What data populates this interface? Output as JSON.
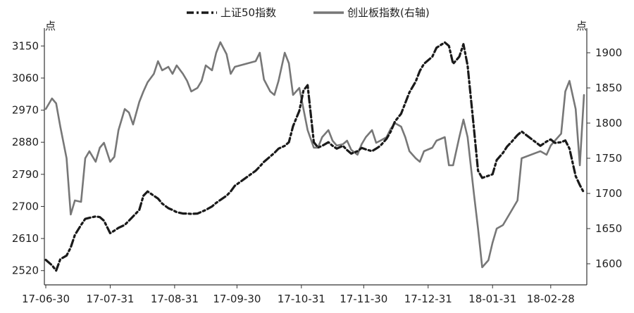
{
  "chart_data": {
    "type": "line",
    "title": "",
    "legend": {
      "position": "top-center",
      "entries": [
        {
          "name": "上证50指数",
          "color": "#1a1a1a",
          "style": "dash-dot"
        },
        {
          "name": "创业板指数(右轴)",
          "color": "#777777",
          "style": "solid"
        }
      ]
    },
    "left_axis": {
      "unit_label": "点",
      "ylim": [
        2480,
        3200
      ],
      "ticks": [
        2520,
        2610,
        2700,
        2790,
        2880,
        2970,
        3060,
        3150
      ]
    },
    "right_axis": {
      "unit_label": "点",
      "ylim": [
        1570,
        1935
      ],
      "ticks": [
        1600,
        1650,
        1700,
        1750,
        1800,
        1850,
        1900
      ]
    },
    "x_axis": {
      "ticks": [
        "17-06-30",
        "17-07-31",
        "17-08-31",
        "17-09-30",
        "17-10-31",
        "17-11-30",
        "17-12-31",
        "18-01-31",
        "18-02-28"
      ],
      "grid": false
    },
    "series": [
      {
        "name": "上证50指数",
        "axis": "left",
        "color": "#1a1a1a",
        "x": [
          "2017-06-30",
          "2017-07-03",
          "2017-07-05",
          "2017-07-07",
          "2017-07-10",
          "2017-07-12",
          "2017-07-14",
          "2017-07-17",
          "2017-07-19",
          "2017-07-21",
          "2017-07-24",
          "2017-07-26",
          "2017-07-28",
          "2017-07-31",
          "2017-08-02",
          "2017-08-04",
          "2017-08-07",
          "2017-08-09",
          "2017-08-11",
          "2017-08-14",
          "2017-08-16",
          "2017-08-18",
          "2017-08-21",
          "2017-08-23",
          "2017-08-25",
          "2017-08-28",
          "2017-08-30",
          "2017-09-01",
          "2017-09-04",
          "2017-09-06",
          "2017-09-08",
          "2017-09-11",
          "2017-09-13",
          "2017-09-15",
          "2017-09-18",
          "2017-09-20",
          "2017-09-22",
          "2017-09-25",
          "2017-09-27",
          "2017-09-29",
          "2017-10-09",
          "2017-10-11",
          "2017-10-13",
          "2017-10-16",
          "2017-10-18",
          "2017-10-20",
          "2017-10-23",
          "2017-10-25",
          "2017-10-27",
          "2017-10-30",
          "2017-11-01",
          "2017-11-03",
          "2017-11-06",
          "2017-11-08",
          "2017-11-10",
          "2017-11-13",
          "2017-11-15",
          "2017-11-17",
          "2017-11-20",
          "2017-11-22",
          "2017-11-24",
          "2017-11-27",
          "2017-11-29",
          "2017-12-01",
          "2017-12-04",
          "2017-12-06",
          "2017-12-08",
          "2017-12-11",
          "2017-12-13",
          "2017-12-15",
          "2017-12-18",
          "2017-12-20",
          "2017-12-22",
          "2017-12-25",
          "2017-12-27",
          "2017-12-29",
          "2018-01-02",
          "2018-01-04",
          "2018-01-08",
          "2018-01-10",
          "2018-01-12",
          "2018-01-15",
          "2018-01-17",
          "2018-01-19",
          "2018-01-22",
          "2018-01-24",
          "2018-01-26",
          "2018-01-29",
          "2018-01-31",
          "2018-02-02",
          "2018-02-05",
          "2018-02-07",
          "2018-02-09",
          "2018-02-12",
          "2018-02-14",
          "2018-02-23",
          "2018-02-26",
          "2018-02-28",
          "2018-03-02",
          "2018-03-05",
          "2018-03-07",
          "2018-03-09",
          "2018-03-12",
          "2018-03-14",
          "2018-03-16"
        ],
        "values": [
          2550,
          2535,
          2520,
          2552,
          2562,
          2585,
          2620,
          2648,
          2665,
          2668,
          2672,
          2670,
          2660,
          2625,
          2632,
          2640,
          2648,
          2660,
          2672,
          2690,
          2730,
          2742,
          2730,
          2722,
          2708,
          2695,
          2690,
          2684,
          2680,
          2680,
          2679,
          2680,
          2685,
          2690,
          2700,
          2710,
          2718,
          2730,
          2742,
          2758,
          2800,
          2812,
          2825,
          2840,
          2850,
          2862,
          2870,
          2880,
          2925,
          2968,
          3025,
          3040,
          2880,
          2865,
          2870,
          2880,
          2870,
          2862,
          2870,
          2858,
          2848,
          2855,
          2864,
          2860,
          2855,
          2862,
          2870,
          2890,
          2910,
          2938,
          2960,
          2990,
          3020,
          3050,
          3080,
          3100,
          3120,
          3145,
          3160,
          3150,
          3100,
          3120,
          3155,
          3095,
          2920,
          2800,
          2780,
          2786,
          2790,
          2830,
          2850,
          2868,
          2880,
          2900,
          2910,
          2870,
          2882,
          2888,
          2878,
          2880,
          2885,
          2862,
          2785,
          2760,
          2738
        ]
      },
      {
        "name": "创业板指数(右轴)",
        "axis": "right",
        "color": "#777777",
        "x": [
          "2017-06-30",
          "2017-07-03",
          "2017-07-05",
          "2017-07-07",
          "2017-07-10",
          "2017-07-12",
          "2017-07-14",
          "2017-07-17",
          "2017-07-19",
          "2017-07-21",
          "2017-07-24",
          "2017-07-26",
          "2017-07-28",
          "2017-07-31",
          "2017-08-02",
          "2017-08-04",
          "2017-08-07",
          "2017-08-09",
          "2017-08-11",
          "2017-08-14",
          "2017-08-16",
          "2017-08-18",
          "2017-08-21",
          "2017-08-23",
          "2017-08-25",
          "2017-08-28",
          "2017-08-30",
          "2017-09-01",
          "2017-09-04",
          "2017-09-06",
          "2017-09-08",
          "2017-09-11",
          "2017-09-13",
          "2017-09-15",
          "2017-09-18",
          "2017-09-20",
          "2017-09-22",
          "2017-09-25",
          "2017-09-27",
          "2017-09-29",
          "2017-10-09",
          "2017-10-11",
          "2017-10-13",
          "2017-10-16",
          "2017-10-18",
          "2017-10-20",
          "2017-10-23",
          "2017-10-25",
          "2017-10-27",
          "2017-10-30",
          "2017-11-01",
          "2017-11-03",
          "2017-11-06",
          "2017-11-08",
          "2017-11-10",
          "2017-11-13",
          "2017-11-15",
          "2017-11-17",
          "2017-11-20",
          "2017-11-22",
          "2017-11-24",
          "2017-11-27",
          "2017-11-29",
          "2017-12-01",
          "2017-12-04",
          "2017-12-06",
          "2017-12-08",
          "2017-12-11",
          "2017-12-13",
          "2017-12-15",
          "2017-12-18",
          "2017-12-20",
          "2017-12-22",
          "2017-12-25",
          "2017-12-27",
          "2017-12-29",
          "2018-01-02",
          "2018-01-04",
          "2018-01-08",
          "2018-01-10",
          "2018-01-12",
          "2018-01-15",
          "2018-01-17",
          "2018-01-19",
          "2018-01-22",
          "2018-01-24",
          "2018-01-26",
          "2018-01-29",
          "2018-01-31",
          "2018-02-02",
          "2018-02-05",
          "2018-02-07",
          "2018-02-09",
          "2018-02-12",
          "2018-02-14",
          "2018-02-23",
          "2018-02-26",
          "2018-02-28",
          "2018-03-02",
          "2018-03-05",
          "2018-03-07",
          "2018-03-09",
          "2018-03-12",
          "2018-03-14",
          "2018-03-16"
        ],
        "values": [
          1820,
          1835,
          1828,
          1795,
          1750,
          1670,
          1690,
          1688,
          1750,
          1760,
          1745,
          1765,
          1772,
          1745,
          1752,
          1790,
          1820,
          1815,
          1798,
          1830,
          1845,
          1858,
          1870,
          1888,
          1875,
          1880,
          1870,
          1882,
          1870,
          1860,
          1845,
          1850,
          1860,
          1882,
          1875,
          1900,
          1915,
          1898,
          1870,
          1880,
          1888,
          1900,
          1862,
          1845,
          1840,
          1860,
          1900,
          1885,
          1840,
          1850,
          1820,
          1790,
          1765,
          1765,
          1780,
          1790,
          1775,
          1768,
          1770,
          1775,
          1762,
          1755,
          1770,
          1780,
          1790,
          1772,
          1775,
          1780,
          1792,
          1800,
          1795,
          1780,
          1760,
          1750,
          1745,
          1760,
          1765,
          1775,
          1780,
          1740,
          1740,
          1780,
          1805,
          1780,
          1700,
          1650,
          1595,
          1605,
          1630,
          1650,
          1655,
          1665,
          1675,
          1690,
          1750,
          1760,
          1755,
          1768,
          1775,
          1785,
          1845,
          1860,
          1820,
          1740,
          1840
        ]
      }
    ]
  }
}
